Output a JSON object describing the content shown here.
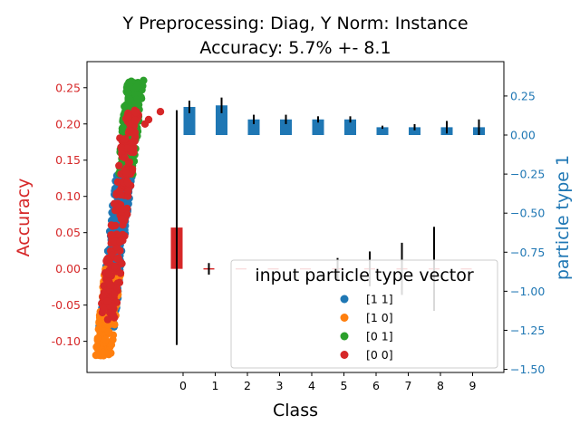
{
  "colors": {
    "left_axis": "#d62728",
    "right_axis": "#1f77b4",
    "bar_right": "#1f77b4",
    "bar_left": "#d62728",
    "err": "#000000",
    "c11": "#1f77b4",
    "c10": "#ff7f0e",
    "c01": "#2ca02c",
    "c00": "#d62728"
  },
  "chart_data": {
    "type": "bar",
    "title_line1": "Y Preprocessing: Diag, Y Norm: Instance",
    "title_line2": "Accuracy: 5.7% +- 8.1",
    "xlabel": "Class",
    "ylabel_left": "Accuracy",
    "ylabel_right": "particle type 1",
    "categories": [
      "0",
      "1",
      "2",
      "3",
      "4",
      "5",
      "6",
      "7",
      "8",
      "9"
    ],
    "ylim_left": [
      -0.143,
      0.286
    ],
    "ylim_right": [
      -1.52,
      0.47
    ],
    "yticks_left": [
      "0.25",
      "0.20",
      "0.15",
      "0.10",
      "0.05",
      "0.00",
      "-0.05",
      "-0.10"
    ],
    "yticks_left_values": [
      0.25,
      0.2,
      0.15,
      0.1,
      0.05,
      0.0,
      -0.05,
      -0.1
    ],
    "yticks_right": [
      "0.25",
      "0.00",
      "−0.25",
      "−0.50",
      "−0.75",
      "−1.00",
      "−1.25",
      "−1.50"
    ],
    "yticks_right_values": [
      0.25,
      0.0,
      -0.25,
      -0.5,
      -0.75,
      -1.0,
      -1.25,
      -1.5
    ],
    "accuracy_bars": {
      "values": [
        0.057,
        0.0,
        0.0,
        0.0,
        0.0,
        0.0,
        0.0,
        0.0,
        0.0,
        0.0
      ],
      "errors": [
        0.162,
        0.008,
        0.0,
        0.0,
        0.0,
        0.015,
        0.024,
        0.036,
        0.058,
        0.0
      ]
    },
    "particle_bars": {
      "values": [
        0.18,
        0.19,
        0.1,
        0.1,
        0.1,
        0.1,
        0.05,
        0.05,
        0.05,
        0.05
      ],
      "errors": [
        0.04,
        0.05,
        0.03,
        0.03,
        0.02,
        0.02,
        0.01,
        0.02,
        0.04,
        0.05
      ]
    },
    "scatter_series": [
      {
        "name": "[1 1]",
        "color_key": "c11",
        "y_range": [
          -0.08,
          0.13
        ],
        "x_range": [
          0.3,
          2.1
        ],
        "count": 260
      },
      {
        "name": "[1 0]",
        "color_key": "c10",
        "y_range": [
          -0.12,
          0.0
        ],
        "x_range": [
          0.0,
          1.3
        ],
        "count": 200
      },
      {
        "name": "[0 1]",
        "color_key": "c01",
        "y_range": [
          0.13,
          0.26
        ],
        "x_range": [
          0.9,
          2.1
        ],
        "count": 220
      },
      {
        "name": "[0 0]",
        "color_key": "c00",
        "y_range": [
          -0.07,
          0.22
        ],
        "x_range": [
          0.3,
          1.4
        ],
        "count": 200
      }
    ],
    "legend": {
      "title": "input particle type vector",
      "position": "lower right",
      "entries": [
        "[1 1]",
        "[1 0]",
        "[0 1]",
        "[0 0]"
      ]
    }
  }
}
